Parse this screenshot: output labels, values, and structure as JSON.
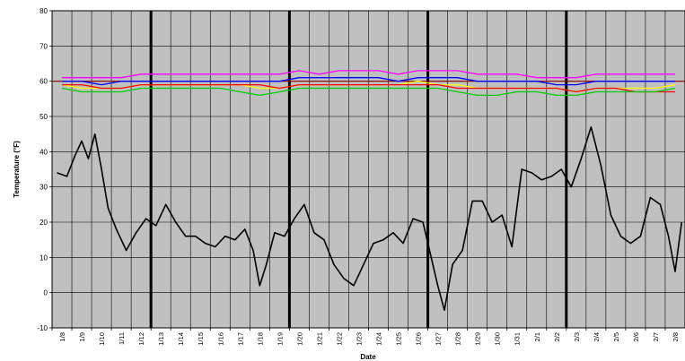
{
  "chart_data": {
    "type": "line",
    "title": "",
    "xlabel": "Date",
    "ylabel": "Temperature (°F)",
    "ylim": [
      -10,
      80
    ],
    "yticks": [
      -10,
      0,
      10,
      20,
      30,
      40,
      50,
      60,
      70,
      80
    ],
    "x_tick_labels": [
      "1/8",
      "1/9",
      "1/10",
      "1/11",
      "1/12",
      "1/13",
      "1/14",
      "1/15",
      "1/16",
      "1/17",
      "1/18",
      "1/19",
      "1/20",
      "1/21",
      "1/22",
      "1/23",
      "1/24",
      "1/25",
      "1/26",
      "1/27",
      "1/28",
      "1/29",
      "1/30",
      "1/31",
      "2/1",
      "2/2",
      "2/3",
      "2/4",
      "2/5",
      "2/6",
      "2/7",
      "2/8"
    ],
    "week_separators": [
      "1/13",
      "1/20",
      "1/27",
      "2/3"
    ],
    "grid": true,
    "legend": "none",
    "plot_background": "#c0c0c0",
    "reference_line": {
      "y": 60,
      "color": "#8b0000"
    },
    "series": [
      {
        "color": "#ff00ff",
        "x": [
          "1/8",
          "1/9",
          "1/10",
          "1/11",
          "1/12",
          "1/13",
          "1/14",
          "1/15",
          "1/16",
          "1/17",
          "1/18",
          "1/19",
          "1/20",
          "1/21",
          "1/22",
          "1/23",
          "1/24",
          "1/25",
          "1/26",
          "1/27",
          "1/28",
          "1/29",
          "1/30",
          "1/31",
          "2/1",
          "2/2",
          "2/3",
          "2/4",
          "2/5",
          "2/6",
          "2/7",
          "2/8"
        ],
        "values": [
          61,
          61,
          61,
          61,
          62,
          62,
          62,
          62,
          62,
          62,
          62,
          62,
          63,
          62,
          63,
          63,
          63,
          62,
          63,
          63,
          63,
          62,
          62,
          62,
          61,
          61,
          61,
          62,
          62,
          62,
          62,
          62
        ]
      },
      {
        "color": "#0000ff",
        "x": [
          "1/8",
          "1/9",
          "1/10",
          "1/11",
          "1/12",
          "1/13",
          "1/14",
          "1/15",
          "1/16",
          "1/17",
          "1/18",
          "1/19",
          "1/20",
          "1/21",
          "1/22",
          "1/23",
          "1/24",
          "1/25",
          "1/26",
          "1/27",
          "1/28",
          "1/29",
          "1/30",
          "1/31",
          "2/1",
          "2/2",
          "2/3",
          "2/4",
          "2/5",
          "2/6",
          "2/7",
          "2/8"
        ],
        "values": [
          60,
          60,
          59,
          60,
          60,
          60,
          60,
          60,
          60,
          60,
          60,
          60,
          61,
          61,
          61,
          61,
          61,
          60,
          61,
          61,
          61,
          60,
          60,
          60,
          60,
          59,
          59,
          60,
          60,
          60,
          60,
          60
        ]
      },
      {
        "color": "#ffff00",
        "x": [
          "1/8",
          "1/9",
          "1/10",
          "1/11",
          "1/12",
          "1/13",
          "1/14",
          "1/15",
          "1/16",
          "1/17",
          "1/18",
          "1/19",
          "1/20",
          "1/21",
          "1/22",
          "1/23",
          "1/24",
          "1/25",
          "1/26",
          "1/27",
          "1/28",
          "1/29",
          "1/30",
          "1/31",
          "2/1",
          "2/2",
          "2/3",
          "2/4",
          "2/5",
          "2/6",
          "2/7",
          "2/8"
        ],
        "values": [
          59,
          58,
          58,
          58,
          59,
          59,
          59,
          59,
          59,
          59,
          58,
          58,
          59,
          59,
          59,
          59,
          59,
          59,
          60,
          59,
          59,
          58,
          58,
          58,
          58,
          58,
          57,
          58,
          58,
          58,
          58,
          59
        ]
      },
      {
        "color": "#ff0000",
        "x": [
          "1/8",
          "1/9",
          "1/10",
          "1/11",
          "1/12",
          "1/13",
          "1/14",
          "1/15",
          "1/16",
          "1/17",
          "1/18",
          "1/19",
          "1/20",
          "1/21",
          "1/22",
          "1/23",
          "1/24",
          "1/25",
          "1/26",
          "1/27",
          "1/28",
          "1/29",
          "1/30",
          "1/31",
          "2/1",
          "2/2",
          "2/3",
          "2/4",
          "2/5",
          "2/6",
          "2/7",
          "2/8"
        ],
        "values": [
          59,
          59,
          58,
          58,
          59,
          59,
          59,
          59,
          59,
          59,
          59,
          58,
          59,
          59,
          59,
          59,
          59,
          59,
          59,
          59,
          58,
          58,
          58,
          58,
          58,
          58,
          57,
          58,
          58,
          57,
          57,
          57
        ]
      },
      {
        "color": "#00cc00",
        "x": [
          "1/8",
          "1/9",
          "1/10",
          "1/11",
          "1/12",
          "1/13",
          "1/14",
          "1/15",
          "1/16",
          "1/17",
          "1/18",
          "1/19",
          "1/20",
          "1/21",
          "1/22",
          "1/23",
          "1/24",
          "1/25",
          "1/26",
          "1/27",
          "1/28",
          "1/29",
          "1/30",
          "1/31",
          "2/1",
          "2/2",
          "2/3",
          "2/4",
          "2/5",
          "2/6",
          "2/7",
          "2/8"
        ],
        "values": [
          58,
          57,
          57,
          57,
          58,
          58,
          58,
          58,
          58,
          57,
          56,
          57,
          58,
          58,
          58,
          58,
          58,
          58,
          58,
          58,
          57,
          56,
          56,
          57,
          57,
          56,
          56,
          57,
          57,
          57,
          57,
          58
        ]
      },
      {
        "color": "#000000",
        "x": [
          "1/8",
          "1/8",
          "1/9",
          "1/9",
          "1/9",
          "1/10",
          "1/10",
          "1/10",
          "1/11",
          "1/11",
          "1/12",
          "1/12",
          "1/13",
          "1/13",
          "1/14",
          "1/14",
          "1/15",
          "1/15",
          "1/16",
          "1/16",
          "1/17",
          "1/17",
          "1/18",
          "1/18",
          "1/18",
          "1/19",
          "1/19",
          "1/20",
          "1/20",
          "1/21",
          "1/21",
          "1/22",
          "1/22",
          "1/23",
          "1/23",
          "1/24",
          "1/24",
          "1/25",
          "1/25",
          "1/26",
          "1/26",
          "1/27",
          "1/27",
          "1/27",
          "1/28",
          "1/28",
          "1/29",
          "1/29",
          "1/30",
          "1/30",
          "1/31",
          "1/31",
          "2/1",
          "2/1",
          "2/2",
          "2/2",
          "2/3",
          "2/3",
          "2/4",
          "2/4",
          "2/5",
          "2/5",
          "2/6",
          "2/6",
          "2/7",
          "2/7",
          "2/8",
          "2/8",
          "2/8"
        ],
        "values": [
          34,
          33,
          39,
          43,
          38,
          45,
          35,
          24,
          18,
          12,
          17,
          21,
          19,
          25,
          20,
          16,
          16,
          14,
          13,
          16,
          15,
          18,
          12,
          2,
          8,
          17,
          16,
          21,
          25,
          17,
          15,
          8,
          4,
          2,
          8,
          14,
          15,
          17,
          14,
          21,
          20,
          10,
          2,
          -5,
          8,
          12,
          26,
          26,
          20,
          22,
          13,
          35,
          34,
          32,
          33,
          35,
          30,
          38,
          47,
          36,
          22,
          16,
          14,
          16,
          27,
          25,
          16,
          6,
          20
        ]
      }
    ]
  }
}
